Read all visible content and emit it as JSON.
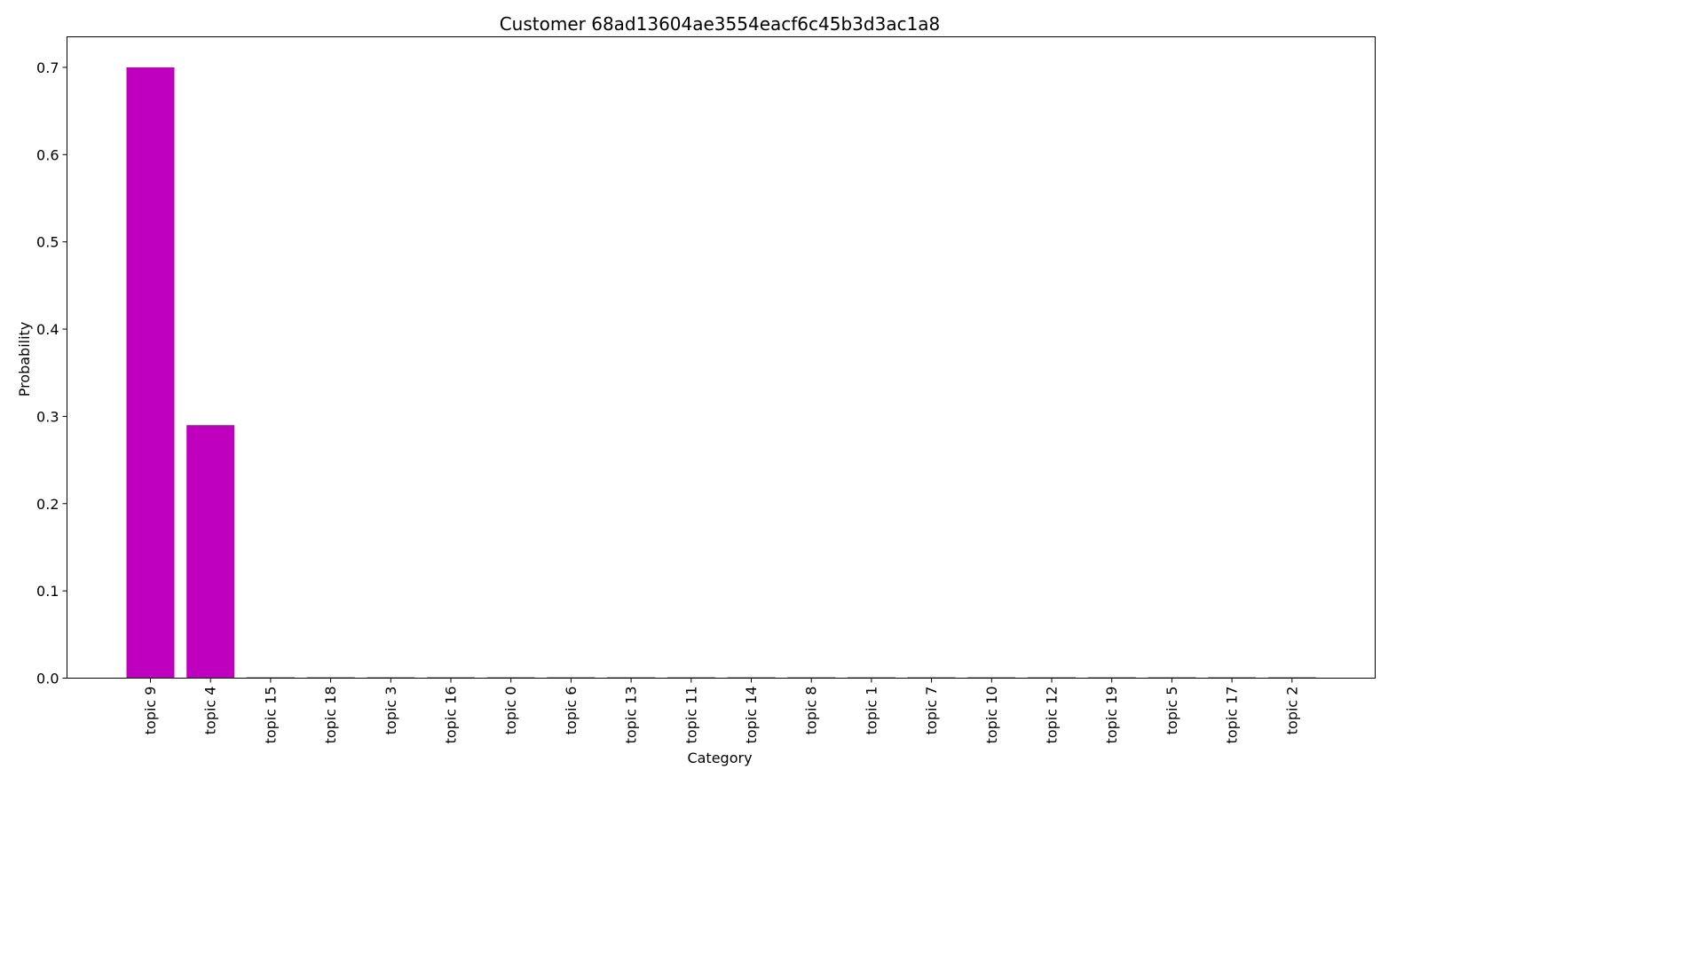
{
  "chart_data": {
    "type": "bar",
    "title": "Customer 68ad13604ae3554eacf6c45b3d3ac1a8",
    "xlabel": "Category",
    "ylabel": "Probability",
    "categories": [
      "topic 9",
      "topic 4",
      "topic 15",
      "topic 18",
      "topic 3",
      "topic 16",
      "topic 0",
      "topic 6",
      "topic 13",
      "topic 11",
      "topic 14",
      "topic 8",
      "topic 1",
      "topic 7",
      "topic 10",
      "topic 12",
      "topic 19",
      "topic 5",
      "topic 17",
      "topic 2"
    ],
    "values": [
      0.7,
      0.29,
      0.001,
      0.001,
      0.001,
      0.001,
      0.001,
      0.001,
      0.001,
      0.001,
      0.001,
      0.001,
      0.001,
      0.001,
      0.001,
      0.001,
      0.001,
      0.001,
      0.001,
      0.001
    ],
    "ylim": [
      0,
      0.735
    ],
    "yticks": [
      "0.0",
      "0.1",
      "0.2",
      "0.3",
      "0.4",
      "0.5",
      "0.6",
      "0.7"
    ],
    "bar_color": "#bf00bf",
    "grid": false,
    "legend": "none"
  }
}
